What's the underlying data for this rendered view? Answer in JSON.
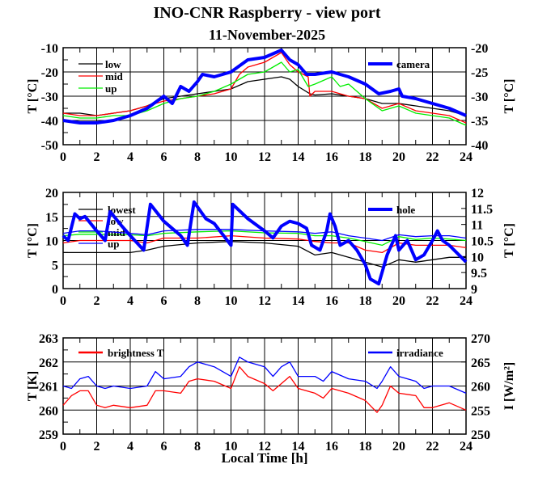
{
  "title": "INO-CNR Raspberry - view port",
  "subtitle": "11-November-2025",
  "colors": {
    "black": "#000000",
    "red": "#ff0000",
    "green": "#00ee00",
    "blue": "#0000ff"
  },
  "chart_data": [
    {
      "type": "line",
      "ylabel": "T [°C]",
      "ylabel_right": "T [°C]",
      "xlim": [
        0,
        24
      ],
      "ylim": [
        -50,
        -10
      ],
      "ylim_right": [
        -40,
        -20
      ],
      "xticks": [
        "0",
        "2",
        "4",
        "6",
        "8",
        "10",
        "12",
        "14",
        "16",
        "18",
        "20",
        "22",
        "24"
      ],
      "yticks": [
        "-50",
        "-40",
        "-30",
        "-20",
        "-10"
      ],
      "yticks_right": [
        "-40",
        "-35",
        "-30",
        "-25",
        "-20"
      ],
      "series": [
        {
          "name": "low",
          "color": "#000000",
          "axis": "left",
          "x": [
            0,
            1,
            2,
            3,
            4,
            5,
            6,
            7,
            8,
            9,
            10,
            11,
            12,
            13,
            13.5,
            14,
            14.7,
            15,
            16,
            17,
            18,
            19,
            20,
            21,
            22,
            23,
            24
          ],
          "y": [
            -37,
            -37,
            -38,
            -37,
            -36,
            -34,
            -31,
            -30,
            -29,
            -28,
            -27,
            -24,
            -23,
            -22,
            -23,
            -26,
            -29,
            -29.5,
            -29,
            -30,
            -31,
            -33,
            -33,
            -34,
            -35,
            -36,
            -38
          ]
        },
        {
          "name": "mid",
          "color": "#ff0000",
          "axis": "left",
          "x": [
            0,
            1,
            2,
            3,
            4,
            5,
            6,
            7,
            8,
            9,
            10,
            10.5,
            11,
            12,
            13,
            13.5,
            14,
            14.6,
            14.7,
            15,
            16,
            17,
            18,
            19,
            20,
            21,
            22,
            23,
            24
          ],
          "y": [
            -37,
            -38,
            -38,
            -37,
            -36,
            -34,
            -32,
            -31,
            -30,
            -29,
            -27,
            -21,
            -18,
            -16,
            -12,
            -17,
            -20,
            -22,
            -30,
            -28,
            -28,
            -30,
            -31,
            -35,
            -33,
            -36,
            -37,
            -38,
            -41
          ]
        },
        {
          "name": "up",
          "color": "#00ee00",
          "axis": "left",
          "x": [
            0,
            1,
            2,
            3,
            4,
            5,
            6,
            7,
            8,
            9,
            10,
            11,
            12,
            13,
            13.5,
            14,
            14.6,
            15,
            16,
            16.5,
            17,
            18,
            19,
            20,
            21,
            22,
            23,
            24
          ],
          "y": [
            -38,
            -39,
            -39,
            -38,
            -38,
            -36,
            -33,
            -31,
            -30,
            -28,
            -25,
            -21,
            -20,
            -16,
            -20,
            -19,
            -26,
            -25,
            -22,
            -26,
            -25,
            -31,
            -36,
            -34,
            -37,
            -38,
            -39,
            -42
          ]
        },
        {
          "name": "camera",
          "color": "#0000ff",
          "axis": "right",
          "thick": true,
          "x": [
            0,
            1,
            2,
            3,
            4,
            5,
            6,
            6.5,
            7,
            7.5,
            8,
            8.3,
            9,
            10,
            11,
            12,
            13,
            13.5,
            14,
            14.5,
            15,
            16,
            17,
            18,
            18.8,
            19.5,
            20,
            20.2,
            21,
            22,
            23,
            24
          ],
          "y": [
            -35,
            -35.5,
            -35.5,
            -35,
            -34,
            -32.5,
            -30,
            -31.5,
            -28,
            -29,
            -27,
            -25.5,
            -26,
            -25,
            -22.5,
            -22,
            -20.5,
            -22.5,
            -23.5,
            -25.5,
            -25.5,
            -25,
            -26,
            -27.5,
            -29.5,
            -29,
            -28.5,
            -30,
            -30.5,
            -31.5,
            -32.5,
            -34
          ]
        }
      ]
    },
    {
      "type": "line",
      "ylabel": "T [°C]",
      "ylabel_right": "T [°C]",
      "xlim": [
        0,
        24
      ],
      "ylim": [
        0,
        20
      ],
      "ylim_right": [
        9,
        12
      ],
      "xticks": [
        "0",
        "2",
        "4",
        "6",
        "8",
        "10",
        "12",
        "14",
        "16",
        "18",
        "20",
        "22",
        "24"
      ],
      "yticks": [
        "0",
        "5",
        "10",
        "15",
        "20"
      ],
      "yticks_right": [
        "9",
        "9.5",
        "10",
        "10.5",
        "11",
        "11.5",
        "12"
      ],
      "series": [
        {
          "name": "lowest",
          "color": "#000000",
          "axis": "left",
          "x": [
            0,
            2,
            4,
            5,
            6,
            8,
            10,
            12,
            14,
            15,
            16,
            17,
            18,
            19,
            20,
            21,
            22,
            23,
            24
          ],
          "y": [
            7.5,
            7.5,
            7.5,
            8,
            8.8,
            9.5,
            9.8,
            9.5,
            8.8,
            7,
            7.5,
            6.5,
            5.5,
            4.5,
            6,
            5.5,
            6,
            6.5,
            6.5
          ]
        },
        {
          "name": "low",
          "color": "#ff0000",
          "axis": "left",
          "x": [
            0,
            1,
            2,
            4,
            5,
            6,
            8,
            10,
            12,
            14,
            15,
            16,
            17,
            18,
            19,
            20,
            21,
            22,
            23,
            24
          ],
          "y": [
            9.5,
            10,
            10,
            10,
            9.5,
            10.5,
            10.5,
            11,
            10.5,
            10.3,
            9.8,
            9.5,
            9.5,
            8,
            7.5,
            9.5,
            9,
            9,
            9,
            8.5
          ]
        },
        {
          "name": "mid",
          "color": "#00ee00",
          "axis": "left",
          "x": [
            0,
            1,
            2,
            4,
            5,
            6,
            8,
            10,
            12,
            14,
            15,
            16,
            17,
            18,
            19,
            20,
            21,
            22,
            23,
            24
          ],
          "y": [
            11,
            11.3,
            11.3,
            11.2,
            11,
            11.5,
            11.8,
            12,
            11.6,
            11.5,
            11,
            11,
            10.5,
            9.8,
            9,
            10.8,
            10.2,
            10.5,
            10.3,
            10
          ]
        },
        {
          "name": "up",
          "color": "#0000ff",
          "axis": "left",
          "x": [
            0,
            1,
            2,
            4,
            5,
            6,
            8,
            10,
            12,
            14,
            15,
            16,
            17,
            18,
            19,
            20,
            21,
            22,
            23,
            24
          ],
          "y": [
            11.5,
            12,
            12,
            11.5,
            11.2,
            12,
            12.3,
            12.3,
            12,
            11.8,
            11.5,
            11.8,
            11,
            10.5,
            10,
            11.2,
            10.8,
            11,
            11,
            10.5
          ]
        },
        {
          "name": "hole",
          "color": "#0000ff",
          "axis": "right",
          "thick": true,
          "x": [
            0,
            0.3,
            0.7,
            1,
            1.3,
            2,
            2.5,
            2.8,
            3.5,
            4,
            4.8,
            5.2,
            6,
            7,
            7.4,
            7.8,
            8.5,
            9,
            10,
            10.1,
            11,
            12,
            12.5,
            13,
            13.5,
            14,
            14.5,
            14.8,
            15.3,
            15.7,
            15.9,
            16.2,
            16.5,
            17,
            17.5,
            18,
            18.3,
            18.8,
            19.3,
            19.8,
            20,
            20.5,
            21,
            21.5,
            22,
            22.3,
            22.6,
            23,
            24
          ],
          "y": [
            10.65,
            10.5,
            11.33,
            11.18,
            11.25,
            10.8,
            10.5,
            11.4,
            10.95,
            10.65,
            10.2,
            11.63,
            11.1,
            10.65,
            10.35,
            11.7,
            11.18,
            11.03,
            10.35,
            11.63,
            11.18,
            10.8,
            10.58,
            10.95,
            11.1,
            11.03,
            10.88,
            10.35,
            10.2,
            10.8,
            11.33,
            10.95,
            10.35,
            10.5,
            10.2,
            9.75,
            9.3,
            9.15,
            10.05,
            10.65,
            10.2,
            10.5,
            9.9,
            10.05,
            10.5,
            10.8,
            10.5,
            10.35,
            9.83
          ]
        }
      ]
    },
    {
      "type": "line",
      "xlabel": "Local Time [h]",
      "ylabel": "T [K]",
      "ylabel_right": "I [W/m²]",
      "xlim": [
        0,
        24
      ],
      "ylim": [
        259,
        263
      ],
      "ylim_right": [
        250,
        270
      ],
      "xticks": [
        "0",
        "2",
        "4",
        "6",
        "8",
        "10",
        "12",
        "14",
        "16",
        "18",
        "20",
        "22",
        "24"
      ],
      "yticks": [
        "259",
        "260",
        "261",
        "262",
        "263"
      ],
      "yticks_right": [
        "250",
        "255",
        "260",
        "265",
        "270"
      ],
      "series": [
        {
          "name": "brightness T",
          "color": "#ff0000",
          "axis": "left",
          "x": [
            0,
            0.5,
            1,
            1.5,
            2,
            2.5,
            3,
            4,
            5,
            5.5,
            6,
            7,
            7.5,
            8,
            9,
            10,
            10.5,
            11,
            12,
            12.5,
            13,
            13.5,
            14,
            15,
            15.5,
            16,
            17,
            18,
            18.7,
            19,
            19.5,
            20,
            21,
            21.5,
            22,
            23,
            24
          ],
          "y": [
            260.2,
            260.6,
            260.8,
            260.8,
            260.2,
            260.1,
            260.2,
            260.1,
            260.2,
            260.8,
            260.8,
            260.7,
            261.2,
            261.3,
            261.2,
            260.9,
            261.8,
            261.4,
            261.1,
            260.8,
            261.1,
            261.4,
            260.9,
            260.7,
            260.5,
            260.9,
            260.7,
            260.4,
            259.9,
            260.2,
            261,
            260.7,
            260.6,
            260.1,
            260.1,
            260.3,
            260
          ]
        },
        {
          "name": "irradiance",
          "color": "#0000ff",
          "axis": "right",
          "x": [
            0,
            0.5,
            1,
            1.5,
            2,
            2.5,
            3,
            4,
            5,
            5.5,
            6,
            7,
            7.5,
            8,
            9,
            10,
            10.5,
            11,
            12,
            12.5,
            13,
            13.5,
            14,
            15,
            15.5,
            16,
            17,
            18,
            18.7,
            19,
            19.5,
            20,
            21,
            21.5,
            22,
            23,
            24
          ],
          "y": [
            260,
            259.5,
            261.5,
            262,
            260,
            259.5,
            260,
            259.5,
            260,
            263,
            261.5,
            262,
            264,
            265,
            264,
            262,
            266,
            265,
            264,
            262,
            264,
            265,
            262,
            262,
            261,
            263,
            261.5,
            261,
            259.5,
            261,
            264,
            262,
            261,
            259.5,
            260,
            260,
            258.5
          ]
        }
      ]
    }
  ]
}
